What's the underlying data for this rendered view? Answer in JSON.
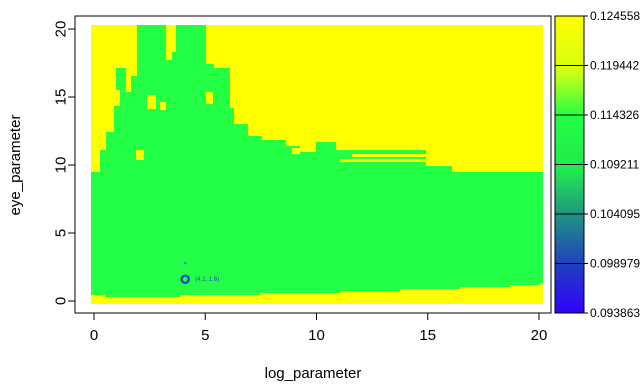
{
  "chart_data": {
    "type": "heatmap",
    "xlabel": "log_parameter",
    "ylabel": "eye_parameter",
    "xlim": [
      0,
      20
    ],
    "ylim": [
      0,
      20
    ],
    "x_ticks": [
      "0",
      "5",
      "10",
      "15",
      "20"
    ],
    "y_ticks": [
      "0",
      "5",
      "10",
      "15",
      "20"
    ],
    "grid": false,
    "colorbar": {
      "labels": [
        "0.124558",
        "0.119442",
        "0.114326",
        "0.109211",
        "0.104095",
        "0.098979",
        "0.093863"
      ],
      "colors": [
        "#ffff00",
        "#c8ff1e",
        "#22ff44",
        "#22f04e",
        "#1f8e86",
        "#1f3fbf",
        "#3300ff"
      ]
    },
    "regions": [
      {
        "name": "high (yellow) background",
        "color": "#ffff00"
      },
      {
        "name": "mid (green) region",
        "color": "#22ff44"
      }
    ],
    "marker": {
      "x": 4.1,
      "y": 1.6,
      "label": "(4.1, 1.6)",
      "color": "#2244cc"
    }
  }
}
